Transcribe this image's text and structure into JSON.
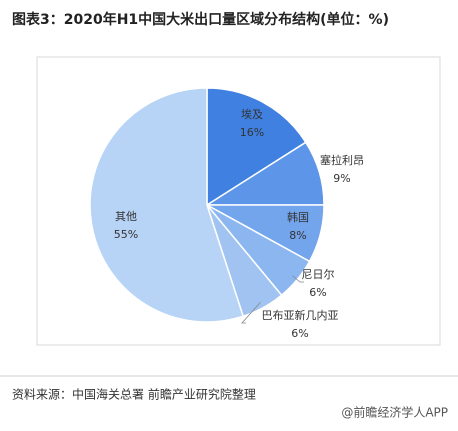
{
  "chart_data": {
    "type": "pie",
    "title": "图表3：2020年H1中国大米出口量区域分布结构(单位：%)",
    "categories": [
      "埃及",
      "塞拉利昂",
      "韩国",
      "尼日尔",
      "巴布亚新几内亚",
      "其他"
    ],
    "values": [
      16,
      9,
      8,
      6,
      6,
      55
    ],
    "value_labels": [
      "16%",
      "9%",
      "8%",
      "6%",
      "6%",
      "55%"
    ],
    "colors": [
      "#3f80e0",
      "#5d96e8",
      "#73a5ec",
      "#8bb6f0",
      "#a0c3f2",
      "#b7d3f6"
    ]
  },
  "source": "资料来源：中国海关总署  前瞻产业研究院整理",
  "footer": "@前瞻经济学人APP"
}
